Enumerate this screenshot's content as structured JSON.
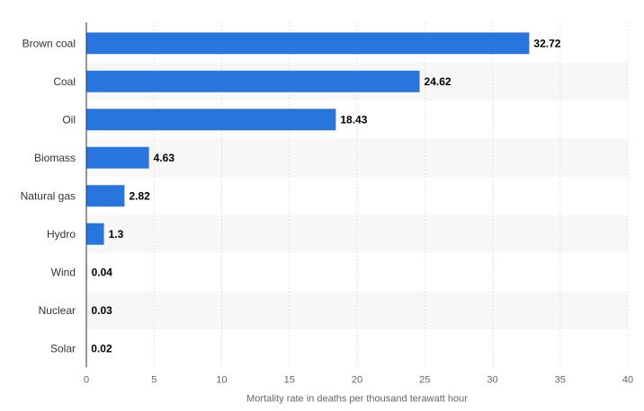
{
  "chart_data": {
    "type": "bar",
    "orientation": "horizontal",
    "categories": [
      "Brown coal",
      "Coal",
      "Oil",
      "Biomass",
      "Natural gas",
      "Hydro",
      "Wind",
      "Nuclear",
      "Solar"
    ],
    "values": [
      32.72,
      24.62,
      18.43,
      4.63,
      2.82,
      1.3,
      0.04,
      0.03,
      0.02
    ],
    "value_labels": [
      "32.72",
      "24.62",
      "18.43",
      "4.63",
      "2.82",
      "1.3",
      "0.04",
      "0.03",
      "0.02"
    ],
    "xlabel": "Mortality rate in deaths per thousand terawatt hour",
    "ylabel": "",
    "xlim": [
      0,
      40
    ],
    "xticks": [
      0,
      5,
      10,
      15,
      20,
      25,
      30,
      35,
      40
    ],
    "grid": "vertical dotted",
    "legend": "none",
    "colors": {
      "bar": "#2876dd",
      "band": "#f7f7f7",
      "grid": "#cccccc",
      "axis": "#333333"
    }
  }
}
